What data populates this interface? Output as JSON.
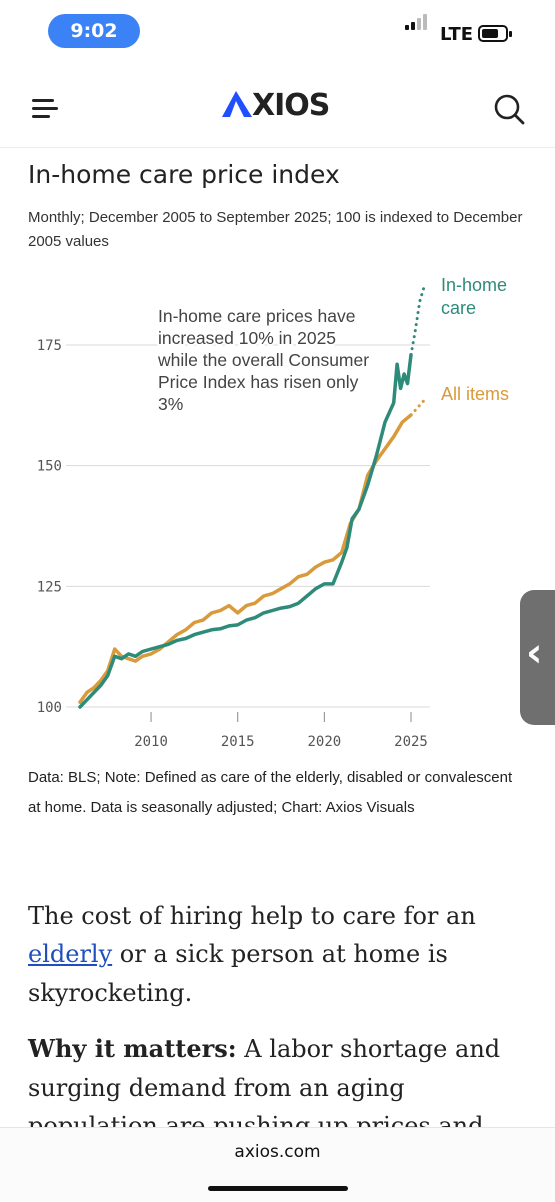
{
  "status_bar": {
    "time": "9:02",
    "network": "LTE"
  },
  "header": {
    "logo_text": "XIOS",
    "menu_icon": "hamburger-icon",
    "search_icon": "search-icon"
  },
  "colors": {
    "in_home_care": "#2e8b7a",
    "all_items": "#d99a3c",
    "axios_blue": "#1f4fff"
  },
  "chart_title": "In-home care price index",
  "chart_subtitle": "Monthly; December 2005 to September 2025; 100 is indexed to December 2005 values",
  "chart_data": {
    "type": "line",
    "title": "In-home care price index",
    "xlabel": "",
    "ylabel": "",
    "xlim": [
      2005.9,
      2025.75
    ],
    "ylim": [
      100,
      190
    ],
    "x_ticks": [
      "2010",
      "2015",
      "2020",
      "2025"
    ],
    "y_ticks": [
      "100",
      "125",
      "150",
      "175"
    ],
    "grid": "horizontal",
    "annotation": "In-home care prices have increased 10% in 2025 while the overall Consumer Price Index has risen only 3%",
    "series": [
      {
        "name": "In-home care",
        "color": "#2e8b7a",
        "points": [
          [
            2005.9,
            100
          ],
          [
            2006.3,
            101.5
          ],
          [
            2006.7,
            103
          ],
          [
            2007.1,
            104.5
          ],
          [
            2007.5,
            106.5
          ],
          [
            2007.9,
            110.5
          ],
          [
            2008.3,
            110
          ],
          [
            2008.7,
            111
          ],
          [
            2009.1,
            110.5
          ],
          [
            2009.5,
            111.5
          ],
          [
            2010.0,
            112
          ],
          [
            2010.5,
            112.5
          ],
          [
            2011.0,
            113
          ],
          [
            2011.5,
            113.8
          ],
          [
            2012.0,
            114.2
          ],
          [
            2012.5,
            115
          ],
          [
            2013.0,
            115.5
          ],
          [
            2013.5,
            116
          ],
          [
            2014.0,
            116.2
          ],
          [
            2014.5,
            116.8
          ],
          [
            2015.0,
            117
          ],
          [
            2015.5,
            118
          ],
          [
            2016.0,
            118.5
          ],
          [
            2016.5,
            119.5
          ],
          [
            2017.0,
            120
          ],
          [
            2017.5,
            120.5
          ],
          [
            2018.0,
            120.8
          ],
          [
            2018.5,
            121.5
          ],
          [
            2019.0,
            123
          ],
          [
            2019.5,
            124.5
          ],
          [
            2020.0,
            125.5
          ],
          [
            2020.5,
            125.5
          ],
          [
            2021.0,
            130
          ],
          [
            2021.3,
            133
          ],
          [
            2021.6,
            139
          ],
          [
            2022.0,
            141
          ],
          [
            2022.5,
            146
          ],
          [
            2023.0,
            152
          ],
          [
            2023.5,
            159
          ],
          [
            2024.0,
            163
          ],
          [
            2024.2,
            171
          ],
          [
            2024.4,
            166
          ],
          [
            2024.6,
            169
          ],
          [
            2024.8,
            167
          ],
          [
            2025.0,
            173
          ]
        ]
      },
      {
        "name": "In-home care",
        "color": "#2e8b7a",
        "dotted": true,
        "points": [
          [
            2025.0,
            173
          ],
          [
            2025.25,
            178
          ],
          [
            2025.5,
            184
          ],
          [
            2025.75,
            187
          ]
        ]
      },
      {
        "name": "All items",
        "color": "#d99a3c",
        "points": [
          [
            2005.9,
            101
          ],
          [
            2006.3,
            103
          ],
          [
            2006.7,
            104
          ],
          [
            2007.1,
            105.5
          ],
          [
            2007.5,
            107.5
          ],
          [
            2007.9,
            112
          ],
          [
            2008.3,
            110.5
          ],
          [
            2008.7,
            110
          ],
          [
            2009.1,
            109.5
          ],
          [
            2009.5,
            110.5
          ],
          [
            2010.0,
            111
          ],
          [
            2010.5,
            112
          ],
          [
            2011.0,
            113.5
          ],
          [
            2011.5,
            115
          ],
          [
            2012.0,
            116
          ],
          [
            2012.5,
            117.5
          ],
          [
            2013.0,
            118
          ],
          [
            2013.5,
            119.5
          ],
          [
            2014.0,
            120
          ],
          [
            2014.5,
            121
          ],
          [
            2015.0,
            119.5
          ],
          [
            2015.5,
            121
          ],
          [
            2016.0,
            121.5
          ],
          [
            2016.5,
            123
          ],
          [
            2017.0,
            123.5
          ],
          [
            2017.5,
            124.5
          ],
          [
            2018.0,
            125.5
          ],
          [
            2018.5,
            127
          ],
          [
            2019.0,
            127.5
          ],
          [
            2019.5,
            129
          ],
          [
            2020.0,
            130
          ],
          [
            2020.5,
            130.5
          ],
          [
            2021.0,
            132
          ],
          [
            2021.5,
            138
          ],
          [
            2022.0,
            141
          ],
          [
            2022.5,
            148
          ],
          [
            2023.0,
            151
          ],
          [
            2023.5,
            153.5
          ],
          [
            2024.0,
            156
          ],
          [
            2024.5,
            159
          ],
          [
            2025.0,
            160.5
          ]
        ]
      },
      {
        "name": "All items",
        "color": "#d99a3c",
        "dotted": true,
        "points": [
          [
            2025.0,
            160.5
          ],
          [
            2025.25,
            161.5
          ],
          [
            2025.5,
            162.5
          ],
          [
            2025.75,
            163.5
          ]
        ]
      }
    ],
    "legend": [
      {
        "label": "In-home care",
        "color": "#2e8b7a"
      },
      {
        "label": "All items",
        "color": "#d99a3c"
      }
    ]
  },
  "source_text": "Data: BLS; Note: Defined as care of the elderly, disabled or convalescent at home. Data is seasonally adjusted; Chart: Axios Visuals",
  "article": {
    "p1_pre": "The cost of hiring help to care for an ",
    "p1_link": "elderly",
    "p1_post": " or a sick person at home is skyrocketing.",
    "p2_bold": "Why it matters:",
    "p2_text": " A labor shortage and surging demand from an aging population are pushing up prices and costs"
  },
  "footer": {
    "url": "axios.com"
  }
}
